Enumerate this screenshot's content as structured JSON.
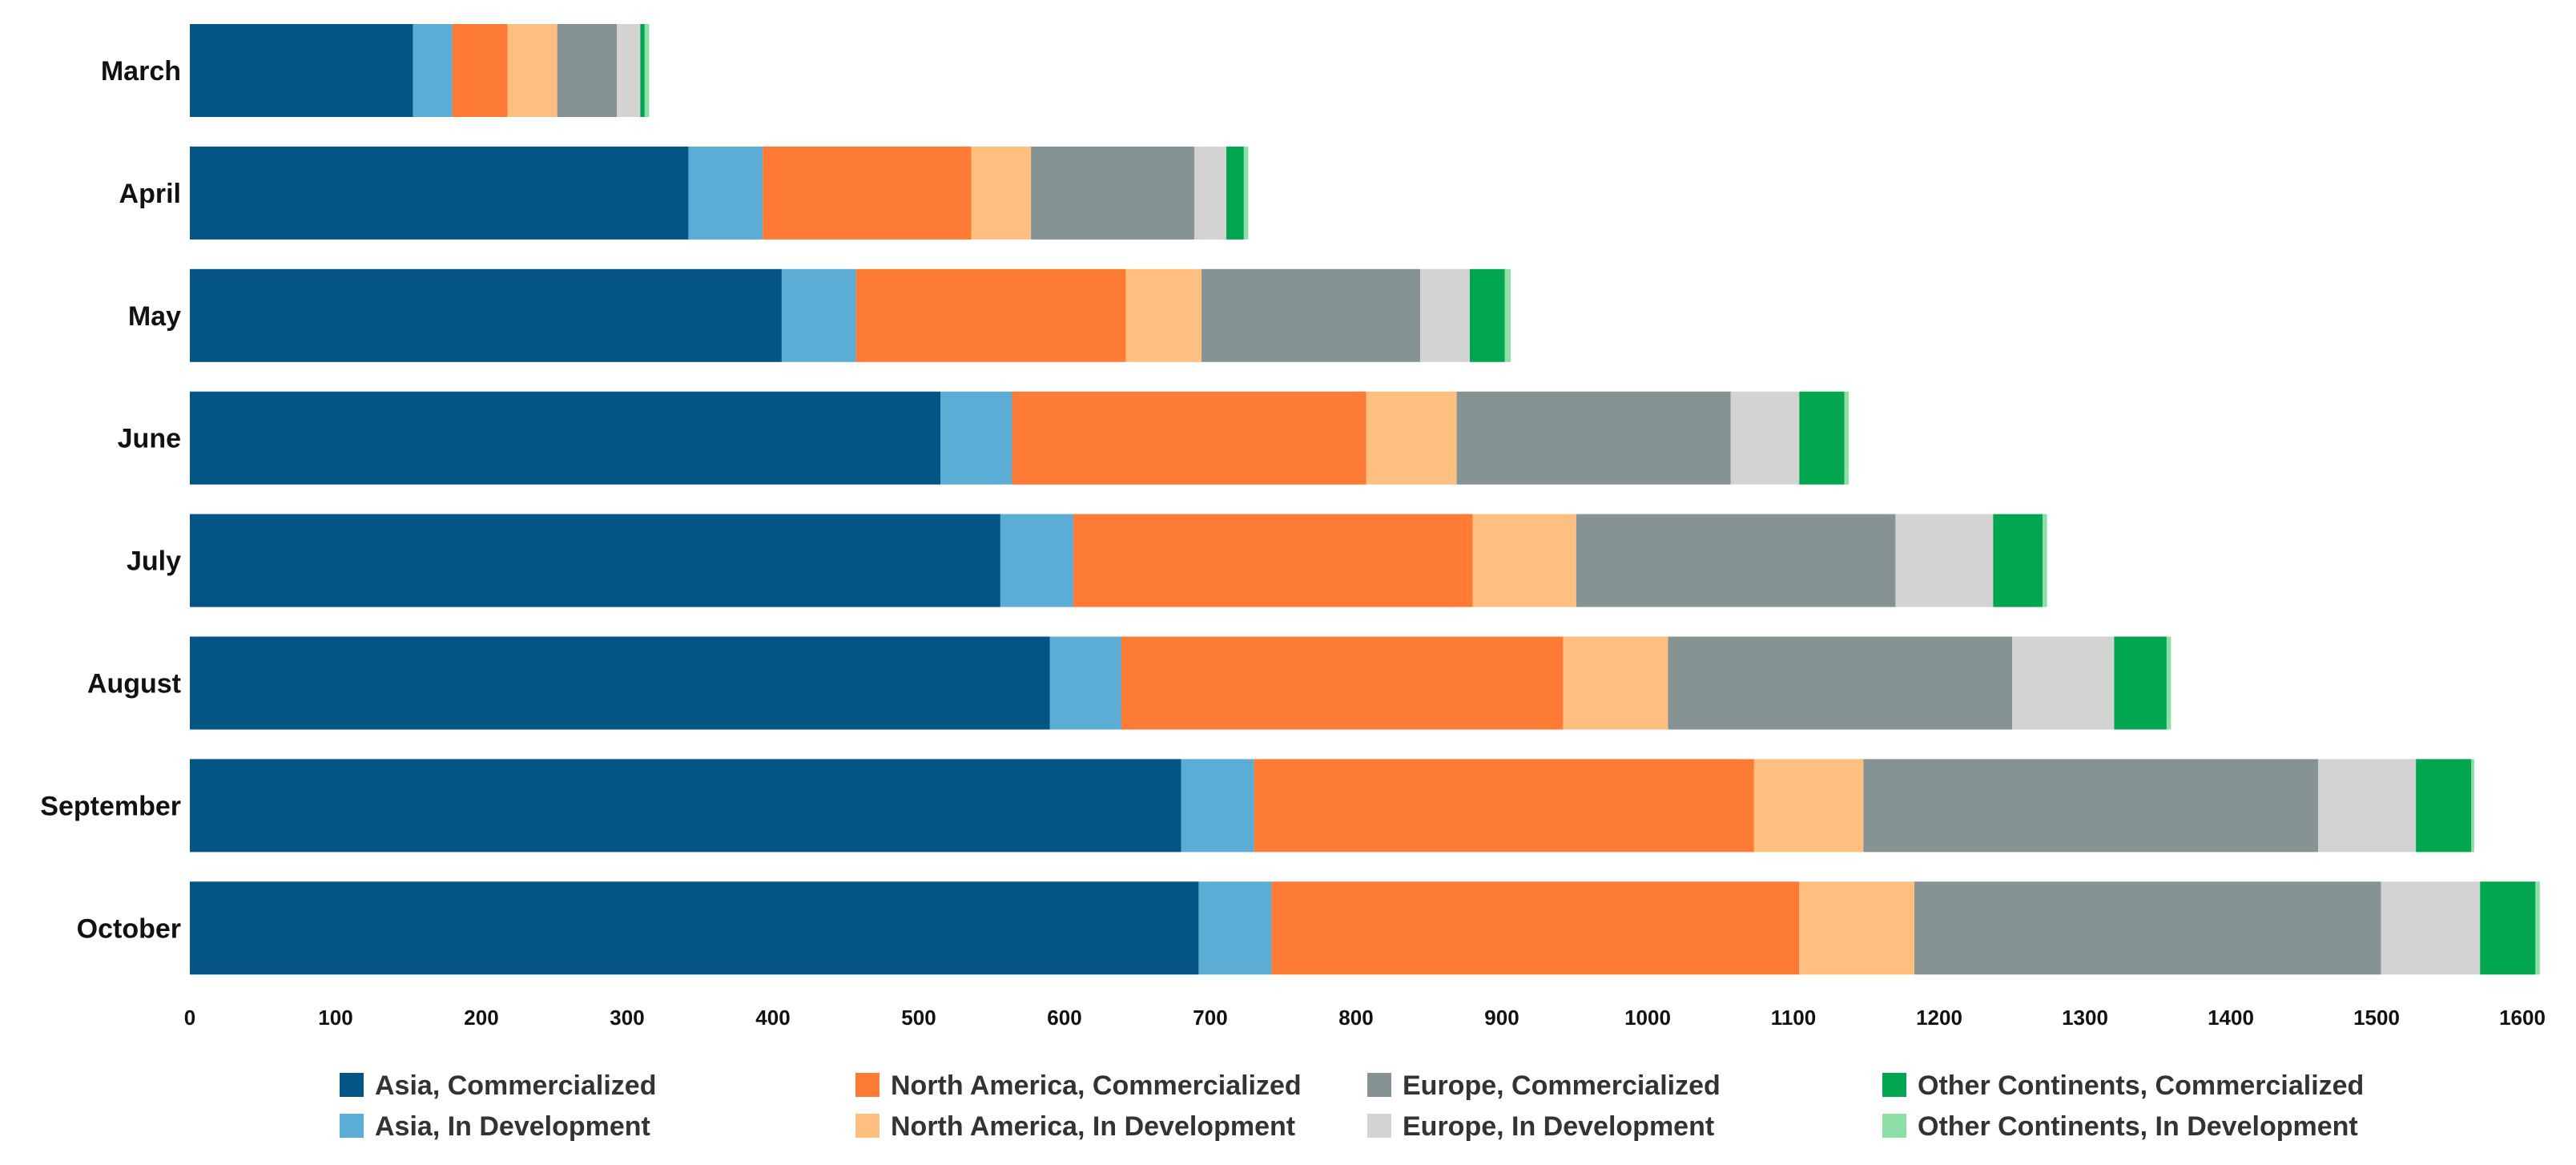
{
  "chart_data": {
    "type": "bar",
    "orientation": "horizontal",
    "stacked": true,
    "title": "",
    "xlabel": "",
    "ylabel": "",
    "xlim": [
      0,
      1600
    ],
    "x_ticks": [
      0,
      100,
      200,
      300,
      400,
      500,
      600,
      700,
      800,
      900,
      1000,
      1100,
      1200,
      1300,
      1400,
      1500,
      1600
    ],
    "grid": false,
    "legend_position": "bottom",
    "categories": [
      "March",
      "April",
      "May",
      "June",
      "July",
      "August",
      "September",
      "October"
    ],
    "series": [
      {
        "name": "Asia, Commercialized",
        "color": "#045485",
        "values": [
          153,
          342,
          406,
          515,
          556,
          590,
          680,
          692
        ]
      },
      {
        "name": "Asia, In Development",
        "color": "#5BADD6",
        "values": [
          27,
          51,
          51,
          49,
          50,
          49,
          50,
          50
        ]
      },
      {
        "name": "North America, Commercialized",
        "color": "#FD7B35",
        "values": [
          38,
          143,
          185,
          243,
          274,
          303,
          343,
          362
        ]
      },
      {
        "name": "North America, In Development",
        "color": "#FFBF80",
        "values": [
          34,
          41,
          52,
          62,
          71,
          72,
          75,
          79
        ]
      },
      {
        "name": "Europe, Commercialized",
        "color": "#869394",
        "values": [
          41,
          112,
          150,
          188,
          219,
          236,
          312,
          320
        ]
      },
      {
        "name": "Europe, In Development",
        "color": "#D3D3D3",
        "values": [
          16,
          22,
          34,
          47,
          67,
          70,
          67,
          68
        ]
      },
      {
        "name": "Other Continents, Commercialized",
        "color": "#03A650",
        "values": [
          3,
          12,
          24,
          31,
          34,
          36,
          38,
          38
        ]
      },
      {
        "name": "Other Continents, In Development",
        "color": "#8DDFA7",
        "values": [
          3,
          3,
          4,
          3,
          3,
          3,
          2,
          3
        ]
      }
    ]
  }
}
